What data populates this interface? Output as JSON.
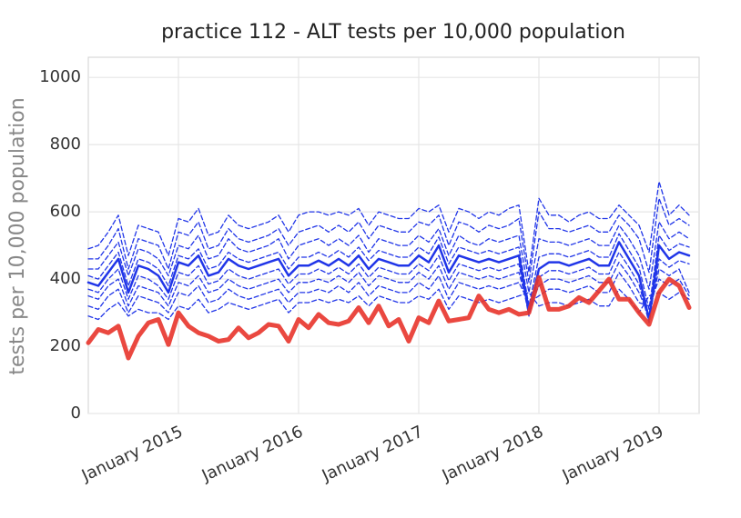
{
  "chart_data": {
    "type": "line",
    "title": "practice 112 - ALT tests per 10,000 population",
    "y_label": "tests per 10,000 population",
    "x": [
      "2014-04",
      "2014-05",
      "2014-06",
      "2014-07",
      "2014-08",
      "2014-09",
      "2014-10",
      "2014-11",
      "2014-12",
      "2015-01",
      "2015-02",
      "2015-03",
      "2015-04",
      "2015-05",
      "2015-06",
      "2015-07",
      "2015-08",
      "2015-09",
      "2015-10",
      "2015-11",
      "2015-12",
      "2016-01",
      "2016-02",
      "2016-03",
      "2016-04",
      "2016-05",
      "2016-06",
      "2016-07",
      "2016-08",
      "2016-09",
      "2016-10",
      "2016-11",
      "2016-12",
      "2017-01",
      "2017-02",
      "2017-03",
      "2017-04",
      "2017-05",
      "2017-06",
      "2017-07",
      "2017-08",
      "2017-09",
      "2017-10",
      "2017-11",
      "2017-12",
      "2018-01",
      "2018-02",
      "2018-03",
      "2018-04",
      "2018-05",
      "2018-06",
      "2018-07",
      "2018-08",
      "2018-09",
      "2018-10",
      "2018-11",
      "2018-12",
      "2019-01",
      "2019-02",
      "2019-03",
      "2019-04"
    ],
    "xlim": [
      "2014-04",
      "2019-05"
    ],
    "xticks": [
      {
        "value": "2015-01",
        "label": "January 2015"
      },
      {
        "value": "2016-01",
        "label": "January 2016"
      },
      {
        "value": "2017-01",
        "label": "January 2017"
      },
      {
        "value": "2018-01",
        "label": "January 2018"
      },
      {
        "value": "2019-01",
        "label": "January 2019"
      }
    ],
    "ylim": [
      0,
      1060
    ],
    "yticks": [
      0,
      200,
      400,
      600,
      800,
      1000
    ],
    "grid": true,
    "series": [
      {
        "color": "#2035e8",
        "dashed": true,
        "values": [
          490,
          500,
          540,
          590,
          470,
          560,
          550,
          540,
          470,
          580,
          570,
          610,
          530,
          540,
          590,
          560,
          550,
          560,
          570,
          590,
          540,
          590,
          600,
          600,
          590,
          600,
          590,
          610,
          560,
          600,
          590,
          580,
          580,
          610,
          600,
          620,
          540,
          610,
          600,
          580,
          600,
          590,
          610,
          620,
          420,
          640,
          590,
          590,
          570,
          590,
          600,
          580,
          580,
          620,
          590,
          560,
          480,
          690,
          590,
          620,
          590
        ]
      },
      {
        "color": "#2035e8",
        "dashed": true,
        "values": [
          460,
          460,
          500,
          550,
          430,
          520,
          510,
          500,
          430,
          540,
          530,
          570,
          490,
          500,
          550,
          520,
          510,
          520,
          530,
          550,
          500,
          540,
          550,
          560,
          540,
          560,
          540,
          570,
          520,
          560,
          550,
          540,
          540,
          570,
          560,
          590,
          500,
          570,
          560,
          540,
          560,
          550,
          560,
          580,
          390,
          600,
          550,
          550,
          540,
          550,
          560,
          540,
          540,
          590,
          560,
          520,
          420,
          640,
          560,
          580,
          560
        ]
      },
      {
        "color": "#2035e8",
        "dashed": true,
        "values": [
          430,
          430,
          470,
          510,
          410,
          490,
          480,
          460,
          410,
          500,
          490,
          530,
          460,
          470,
          520,
          490,
          480,
          490,
          500,
          520,
          460,
          500,
          510,
          520,
          500,
          520,
          500,
          530,
          480,
          520,
          510,
          500,
          500,
          530,
          510,
          550,
          470,
          530,
          510,
          500,
          520,
          510,
          520,
          530,
          360,
          520,
          510,
          510,
          500,
          510,
          520,
          500,
          500,
          560,
          520,
          470,
          370,
          570,
          520,
          540,
          520
        ]
      },
      {
        "color": "#2035e8",
        "dashed": true,
        "values": [
          410,
          400,
          440,
          480,
          380,
          460,
          450,
          430,
          380,
          470,
          460,
          490,
          430,
          440,
          480,
          460,
          450,
          460,
          470,
          480,
          430,
          465,
          465,
          480,
          465,
          485,
          465,
          495,
          455,
          485,
          475,
          465,
          465,
          495,
          475,
          525,
          445,
          495,
          485,
          475,
          485,
          475,
          485,
          495,
          320,
          465,
          475,
          475,
          465,
          475,
          485,
          465,
          465,
          535,
          485,
          435,
          310,
          530,
          485,
          505,
          495
        ]
      },
      {
        "color": "#2035e8",
        "dashed": true,
        "values": [
          370,
          360,
          400,
          430,
          340,
          410,
          400,
          380,
          340,
          420,
          410,
          440,
          385,
          395,
          430,
          410,
          400,
          410,
          420,
          430,
          385,
          415,
          415,
          430,
          415,
          435,
          415,
          445,
          405,
          435,
          425,
          415,
          415,
          445,
          425,
          470,
          395,
          445,
          435,
          425,
          435,
          425,
          435,
          445,
          290,
          405,
          425,
          425,
          415,
          425,
          435,
          415,
          415,
          480,
          435,
          385,
          270,
          460,
          435,
          455,
          445
        ]
      },
      {
        "color": "#2035e8",
        "dashed": true,
        "values": [
          350,
          340,
          380,
          400,
          320,
          380,
          370,
          360,
          320,
          390,
          380,
          410,
          360,
          370,
          400,
          380,
          370,
          380,
          390,
          400,
          360,
          390,
          390,
          400,
          390,
          410,
          390,
          420,
          380,
          410,
          400,
          390,
          390,
          420,
          400,
          440,
          370,
          420,
          410,
          400,
          410,
          400,
          410,
          420,
          310,
          380,
          400,
          400,
          390,
          400,
          410,
          390,
          390,
          450,
          410,
          360,
          290,
          430,
          410,
          430,
          360
        ]
      },
      {
        "color": "#2035e8",
        "dashed": true,
        "values": [
          320,
          310,
          350,
          370,
          300,
          350,
          340,
          330,
          300,
          360,
          350,
          380,
          330,
          340,
          370,
          350,
          340,
          350,
          360,
          370,
          330,
          360,
          360,
          370,
          360,
          380,
          360,
          390,
          350,
          380,
          370,
          360,
          360,
          390,
          370,
          410,
          340,
          390,
          380,
          370,
          380,
          370,
          380,
          390,
          330,
          350,
          370,
          370,
          360,
          370,
          380,
          360,
          360,
          420,
          380,
          330,
          320,
          400,
          380,
          400,
          350
        ]
      },
      {
        "color": "#2035e8",
        "dashed": true,
        "values": [
          290,
          280,
          310,
          330,
          290,
          310,
          300,
          300,
          280,
          320,
          310,
          340,
          300,
          310,
          330,
          320,
          310,
          320,
          330,
          340,
          300,
          330,
          330,
          340,
          330,
          340,
          330,
          350,
          320,
          350,
          340,
          330,
          330,
          350,
          340,
          370,
          310,
          350,
          340,
          330,
          340,
          330,
          340,
          350,
          360,
          320,
          330,
          330,
          320,
          330,
          340,
          320,
          320,
          370,
          340,
          300,
          350,
          360,
          340,
          360,
          340
        ]
      },
      {
        "color": "#2035e8",
        "dashed": false,
        "values": [
          390,
          380,
          420,
          460,
          360,
          440,
          430,
          410,
          360,
          450,
          440,
          470,
          410,
          420,
          460,
          440,
          430,
          440,
          450,
          460,
          410,
          440,
          440,
          455,
          440,
          460,
          440,
          470,
          430,
          460,
          450,
          440,
          440,
          470,
          450,
          500,
          420,
          470,
          460,
          450,
          460,
          450,
          460,
          470,
          300,
          430,
          450,
          450,
          440,
          450,
          460,
          440,
          440,
          510,
          460,
          410,
          280,
          500,
          460,
          480,
          470
        ]
      },
      {
        "color": "#e8342b",
        "dashed": false,
        "highlight": true,
        "values": [
          210,
          250,
          240,
          260,
          165,
          230,
          270,
          280,
          205,
          300,
          260,
          240,
          230,
          215,
          220,
          255,
          225,
          240,
          265,
          260,
          215,
          280,
          255,
          295,
          270,
          265,
          275,
          315,
          270,
          320,
          260,
          280,
          215,
          285,
          270,
          335,
          275,
          280,
          285,
          350,
          310,
          300,
          310,
          295,
          300,
          405,
          310,
          310,
          320,
          345,
          330,
          365,
          400,
          340,
          340,
          300,
          265,
          360,
          400,
          380,
          315
        ]
      }
    ]
  }
}
